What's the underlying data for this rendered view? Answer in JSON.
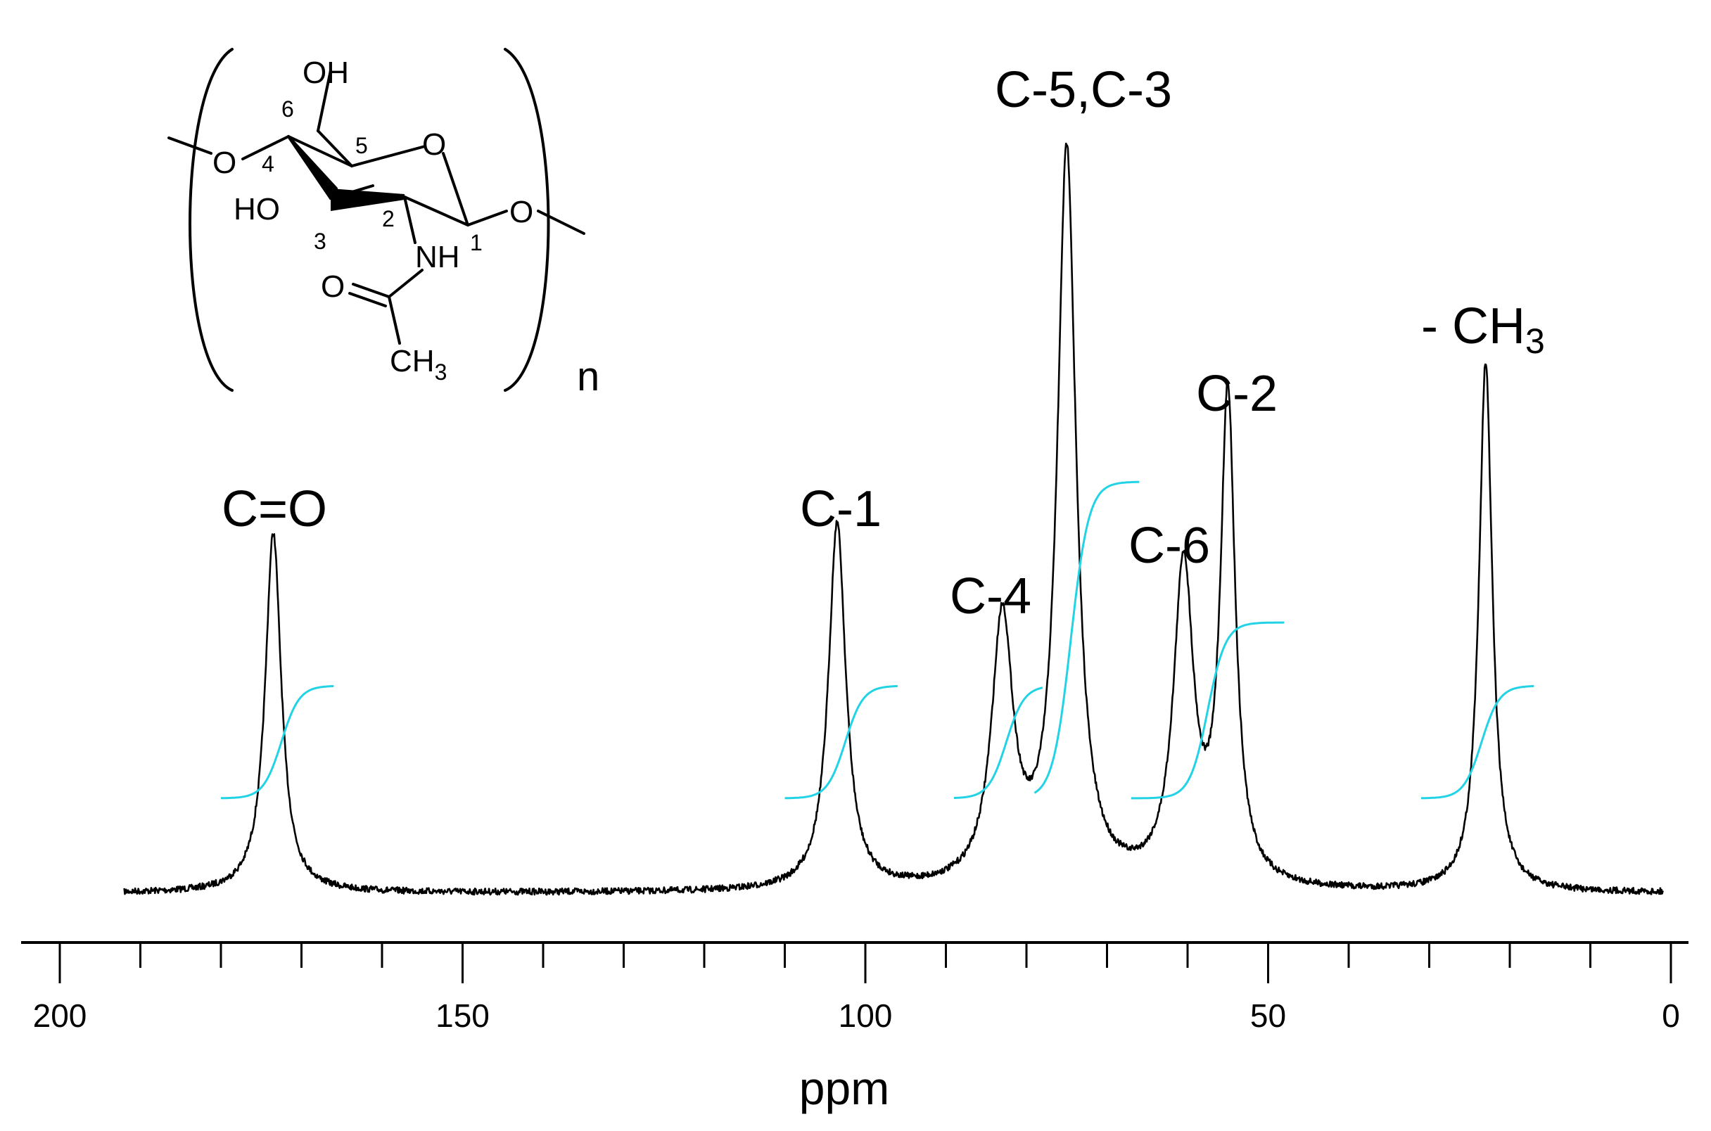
{
  "chart_data": {
    "type": "line",
    "title": "",
    "xlabel": "ppm",
    "ylabel": "",
    "xlim": [
      200,
      0
    ],
    "x_reversed": true,
    "ylim": [
      0,
      1
    ],
    "grid": false,
    "legend": "none",
    "spectrum_color": "#000000",
    "integral_color": "#22d3e6",
    "x_ticks": [
      200,
      150,
      100,
      50,
      0
    ],
    "x_tick_labels": [
      "200",
      "150",
      "100",
      "50",
      "0"
    ],
    "x_minor_step": 10,
    "spectrum_range": [
      192,
      1
    ],
    "peaks": [
      {
        "label": "C=O",
        "ppm": 173.5,
        "height": 0.49,
        "width": 1.2
      },
      {
        "label": "C-1",
        "ppm": 103.5,
        "height": 0.5,
        "width": 1.3
      },
      {
        "label": "C-4",
        "ppm": 83.0,
        "height": 0.36,
        "width": 1.6
      },
      {
        "label": "C-5,C-3",
        "ppm": 75.0,
        "height": 1.0,
        "width": 1.4
      },
      {
        "label": "C-6",
        "ppm": 60.5,
        "height": 0.43,
        "width": 1.5
      },
      {
        "label": "C-2",
        "ppm": 55.0,
        "height": 0.66,
        "width": 1.1
      },
      {
        "label": "- CH3",
        "ppm": 23.0,
        "height": 0.72,
        "width": 1.0
      }
    ],
    "integrals": [
      {
        "from": 180,
        "to": 166,
        "center": 172.5
      },
      {
        "from": 110,
        "to": 96,
        "center": 102.5
      },
      {
        "from": 89,
        "to": 78,
        "center": 82.5
      },
      {
        "from": 79,
        "to": 66,
        "center": 74.5
      },
      {
        "from": 67,
        "to": 48,
        "center": 57.5
      },
      {
        "from": 31,
        "to": 17,
        "center": 23.5
      }
    ]
  },
  "structure": {
    "atoms": {
      "oh_top": "OH",
      "ho_left": "HO",
      "nh": "NH",
      "ring_o": "O",
      "left_o": "O",
      "right_o": "O",
      "carbonyl_o": "O",
      "ch": "CH",
      "ch_sub": "3"
    },
    "numbers": [
      "6",
      "5",
      "4",
      "3",
      "2",
      "1"
    ],
    "repeat": "n"
  },
  "labels": {
    "co": "C=O",
    "c1": "C-1",
    "c4": "C-4",
    "c53": "C-5,C-3",
    "c6": "C-6",
    "c2": "C-2",
    "ch3_main": "- CH",
    "ch3_sub": "3"
  }
}
